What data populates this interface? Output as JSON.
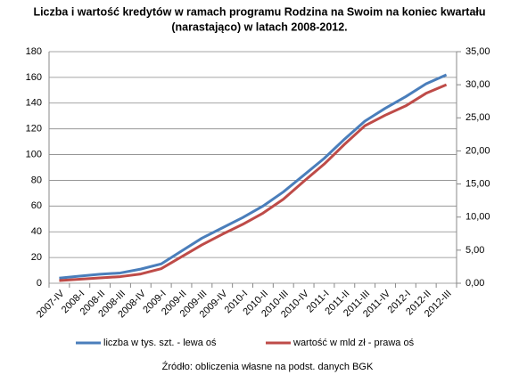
{
  "chart_data": {
    "type": "line",
    "title_lines": [
      "Liczba i wartość kredytów w ramach programu Rodzina na Swoim na koniec kwartału",
      "(narastająco)  w latach 2008-2012."
    ],
    "categories": [
      "2007-IV",
      "2008-I",
      "2008-II",
      "2008-III",
      "2008-IV",
      "2009-I",
      "2009-II",
      "2009-III",
      "2009-IV",
      "2010-I",
      "2010-II",
      "2010-III",
      "2010-IV",
      "2011-I",
      "2011-II",
      "2011-III",
      "2011-IV",
      "2012-I",
      "2012-II",
      "2012-III"
    ],
    "series": [
      {
        "name": "liczba w tys. szt. - lewa oś",
        "color": "#4a7ebb",
        "values": [
          4,
          5.5,
          7,
          8,
          11,
          15,
          25,
          35,
          43,
          51,
          60,
          71,
          84,
          97,
          112,
          126,
          136,
          145,
          155,
          162
        ]
      },
      {
        "name": "wartość w mld zł - prawa oś",
        "color": "#be4b48",
        "axis": "y2",
        "values": [
          0.4,
          0.6,
          0.8,
          1.0,
          1.4,
          2.2,
          4.0,
          5.8,
          7.4,
          8.9,
          10.6,
          12.7,
          15.4,
          18.0,
          21.0,
          23.8,
          25.4,
          26.8,
          28.7,
          30.0
        ]
      }
    ],
    "ylim": [
      0,
      180
    ],
    "yticks": [
      0,
      20,
      40,
      60,
      80,
      100,
      120,
      140,
      160,
      180
    ],
    "y2lim": [
      0,
      35
    ],
    "y2ticks": [
      {
        "value": 0,
        "label": "0,00"
      },
      {
        "value": 5,
        "label": "5,00"
      },
      {
        "value": 10,
        "label": "10,00"
      },
      {
        "value": 15,
        "label": "15,00"
      },
      {
        "value": 20,
        "label": "20,00"
      },
      {
        "value": 25,
        "label": "25,00"
      },
      {
        "value": 30,
        "label": "30,00"
      },
      {
        "value": 35,
        "label": "35,00"
      }
    ],
    "grid": true,
    "legend": "bottom",
    "source": "Źródło: obliczenia własne na podst. danych BGK"
  }
}
